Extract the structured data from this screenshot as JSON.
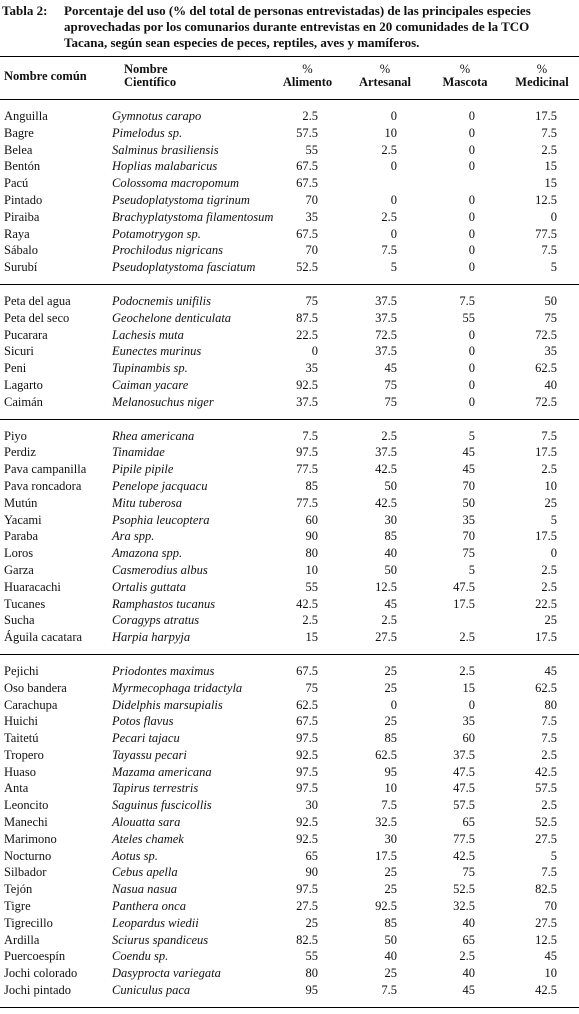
{
  "title": {
    "label": "Tabla 2:",
    "text": "Porcentaje del uso (% del total de personas entrevistadas) de las principales especies aprovechadas por los comunarios durante entrevistas en 20 comunidades de la TCO Tacana, según sean especies de peces, reptiles, aves y mamíferos."
  },
  "table": {
    "header": [
      [
        "Nombre común"
      ],
      [
        "Nombre",
        "Científico"
      ],
      [
        "%",
        "Alimento"
      ],
      [
        "%",
        "Artesanal"
      ],
      [
        "%",
        "Mascota"
      ],
      [
        "%",
        "Medicinal"
      ]
    ],
    "groups": [
      {
        "rows": [
          [
            "Anguilla",
            "Gymnotus carapo",
            "2.5",
            "0",
            "0",
            "17.5"
          ],
          [
            "Bagre",
            "Pimelodus sp.",
            "57.5",
            "10",
            "0",
            "7.5"
          ],
          [
            "Belea",
            "Salminus brasiliensis",
            "55",
            "2.5",
            "0",
            "2.5"
          ],
          [
            "Bentón",
            "Hoplias malabaricus",
            "67.5",
            "0",
            "0",
            "15"
          ],
          [
            "Pacú",
            "Colossoma macropomum",
            "67.5",
            null,
            null,
            "15"
          ],
          [
            "Pintado",
            "Pseudoplatystoma tigrinum",
            "70",
            "0",
            "0",
            "12.5"
          ],
          [
            "Piraiba",
            "Brachyplatystoma filamentosum",
            "35",
            "2.5",
            "0",
            "0"
          ],
          [
            "Raya",
            "Potamotrygon sp.",
            "67.5",
            "0",
            "0",
            "77.5"
          ],
          [
            "Sábalo",
            "Prochilodus nigricans",
            "70",
            "7.5",
            "0",
            "7.5"
          ],
          [
            "Surubí",
            "Pseudoplatystoma fasciatum",
            "52.5",
            "5",
            "0",
            "5"
          ]
        ]
      },
      {
        "rows": [
          [
            "Peta del agua",
            "Podocnemis unifilis",
            "75",
            "37.5",
            "7.5",
            "50"
          ],
          [
            "Peta del seco",
            "Geochelone denticulata",
            "87.5",
            "37.5",
            "55",
            "75"
          ],
          [
            "Pucarara",
            "Lachesis muta",
            "22.5",
            "72.5",
            "0",
            "72.5"
          ],
          [
            "Sicuri",
            "Eunectes murinus",
            "0",
            "37.5",
            "0",
            "35"
          ],
          [
            "Peni",
            "Tupinambis sp.",
            "35",
            "45",
            "0",
            "62.5"
          ],
          [
            "Lagarto",
            "Caiman yacare",
            "92.5",
            "75",
            "0",
            "40"
          ],
          [
            "Caimán",
            "Melanosuchus niger",
            "37.5",
            "75",
            "0",
            "72.5"
          ]
        ]
      },
      {
        "rows": [
          [
            "Piyo",
            "Rhea americana",
            "7.5",
            "2.5",
            "5",
            "7.5"
          ],
          [
            "Perdiz",
            "Tinamidae",
            "97.5",
            "37.5",
            "45",
            "17.5"
          ],
          [
            "Pava campanilla",
            "Pipile pipile",
            "77.5",
            "42.5",
            "45",
            "2.5"
          ],
          [
            "Pava roncadora",
            "Penelope jacquacu",
            "85",
            "50",
            "70",
            "10"
          ],
          [
            "Mutún",
            "Mitu tuberosa",
            "77.5",
            "42.5",
            "50",
            "25"
          ],
          [
            "Yacami",
            "Psophia leucoptera",
            "60",
            "30",
            "35",
            "5"
          ],
          [
            "Paraba",
            "Ara spp.",
            "90",
            "85",
            "70",
            "17.5"
          ],
          [
            "Loros",
            "Amazona spp.",
            "80",
            "40",
            "75",
            "0"
          ],
          [
            "Garza",
            "Casmerodius albus",
            "10",
            "50",
            "5",
            "2.5"
          ],
          [
            "Huaracachi",
            "Ortalis guttata",
            "55",
            "12.5",
            "47.5",
            "2.5"
          ],
          [
            "Tucanes",
            "Ramphastos tucanus",
            "42.5",
            "45",
            "17.5",
            "22.5"
          ],
          [
            "Sucha",
            "Coragyps atratus",
            "2.5",
            "2.5",
            null,
            "25"
          ],
          [
            "Águila cacatara",
            "Harpia harpyja",
            "15",
            "27.5",
            "2.5",
            "17.5"
          ]
        ]
      },
      {
        "rows": [
          [
            "Pejichi",
            "Priodontes maximus",
            "67.5",
            "25",
            "2.5",
            "45"
          ],
          [
            "Oso bandera",
            "Myrmecophaga tridactyla",
            "75",
            "25",
            "15",
            "62.5"
          ],
          [
            "Carachupa",
            "Didelphis marsupialis",
            "62.5",
            "0",
            "0",
            "80"
          ],
          [
            "Huichi",
            "Potos flavus",
            "67.5",
            "25",
            "35",
            "7.5"
          ],
          [
            "Taitetú",
            "Pecari tajacu",
            "97.5",
            "85",
            "60",
            "7.5"
          ],
          [
            "Tropero",
            "Tayassu pecari",
            "92.5",
            "62.5",
            "37.5",
            "2.5"
          ],
          [
            "Huaso",
            "Mazama americana",
            "97.5",
            "95",
            "47.5",
            "42.5"
          ],
          [
            "Anta",
            "Tapirus terrestris",
            "97.5",
            "10",
            "47.5",
            "57.5"
          ],
          [
            "Leoncito",
            "Saguinus fuscicollis",
            "30",
            "7.5",
            "57.5",
            "2.5"
          ],
          [
            "Manechi",
            "Alouatta sara",
            "92.5",
            "32.5",
            "65",
            "52.5"
          ],
          [
            "Marimono",
            "Ateles chamek",
            "92.5",
            "30",
            "77.5",
            "27.5"
          ],
          [
            "Nocturno",
            "Aotus sp.",
            "65",
            "17.5",
            "42.5",
            "5"
          ],
          [
            "Silbador",
            "Cebus apella",
            "90",
            "25",
            "75",
            "7.5"
          ],
          [
            "Tejón",
            "Nasua nasua",
            "97.5",
            "25",
            "52.5",
            "82.5"
          ],
          [
            "Tigre",
            "Panthera onca",
            "27.5",
            "92.5",
            "32.5",
            "70"
          ],
          [
            "Tigrecillo",
            "Leopardus wiedii",
            "25",
            "85",
            "40",
            "27.5"
          ],
          [
            "Ardilla",
            "Sciurus spandiceus",
            "82.5",
            "50",
            "65",
            "12.5"
          ],
          [
            "Puercoespín",
            "Coendu sp.",
            "55",
            "40",
            "2.5",
            "45"
          ],
          [
            "Jochi colorado",
            "Dasyprocta variegata",
            "80",
            "25",
            "40",
            "10"
          ],
          [
            "Jochi pintado",
            "Cuniculus paca",
            "95",
            "7.5",
            "45",
            "42.5"
          ]
        ]
      }
    ]
  }
}
